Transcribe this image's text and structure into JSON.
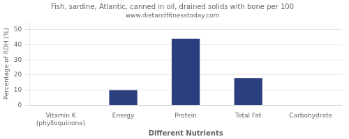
{
  "chart_data": {
    "type": "bar",
    "title": "Fish, sardine, Atlantic, canned in oil, drained solids with bone per 100",
    "subtitle": "www.dietandfitnesstoday.com",
    "categories": [
      "Vitamin K (phylloquinone)",
      "Energy",
      "Protein",
      "Total Fat",
      "Carbohydrate"
    ],
    "values": [
      0,
      10,
      44,
      18,
      0
    ],
    "color": "#2b3f7e",
    "xlabel": "Different Nutrients",
    "ylabel": "Percentage of RDH (%)",
    "ylim": [
      0,
      55
    ],
    "yticks": [
      0,
      10,
      20,
      30,
      40,
      50
    ],
    "grid": true
  }
}
